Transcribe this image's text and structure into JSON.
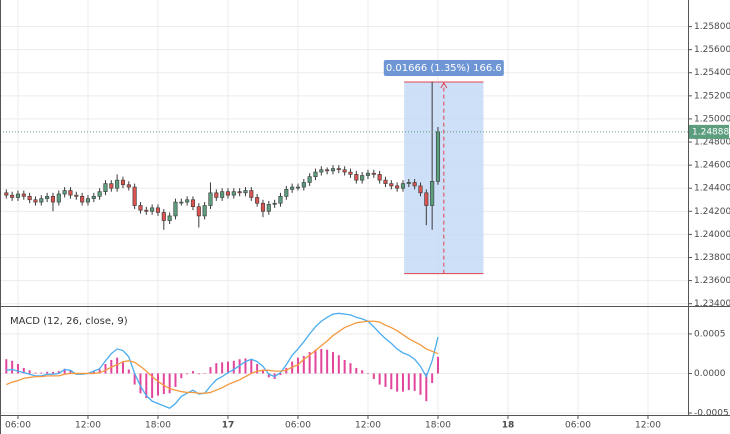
{
  "chart_data": [
    {
      "type": "candlestick",
      "x": [
        5,
        5.5,
        6,
        6.5,
        7,
        7.5,
        8,
        8.5,
        9,
        9.5,
        10,
        10.5,
        11,
        11.5,
        12,
        12.5,
        13,
        13.5,
        14,
        14.5,
        15,
        15.5,
        16,
        16.5,
        17,
        17.5,
        18,
        18.5,
        19,
        19.5,
        20,
        20.5,
        21,
        21.5,
        22,
        22.5,
        23,
        23.5,
        24,
        24.5,
        25,
        25.5,
        26,
        26.5,
        27,
        27.5,
        28,
        28.5,
        29,
        29.5,
        30,
        30.5,
        31,
        31.5,
        32,
        32.5,
        33,
        33.5,
        34,
        34.5,
        35,
        35.5,
        36,
        36.5,
        37,
        37.5,
        38,
        38.5,
        39,
        39.5,
        40,
        40.5,
        41,
        41.5,
        42
      ],
      "open": [
        1.2436,
        1.2434,
        1.2432,
        1.2435,
        1.2433,
        1.243,
        1.2428,
        1.2431,
        1.2433,
        1.2428,
        1.2435,
        1.2438,
        1.2434,
        1.2433,
        1.2428,
        1.2431,
        1.2433,
        1.2437,
        1.2444,
        1.244,
        1.2447,
        1.2443,
        1.2441,
        1.2425,
        1.2421,
        1.242,
        1.2423,
        1.2419,
        1.2412,
        1.2416,
        1.2428,
        1.2428,
        1.243,
        1.2424,
        1.2416,
        1.2425,
        1.2436,
        1.2432,
        1.2437,
        1.2434,
        1.2437,
        1.2436,
        1.2438,
        1.2432,
        1.2427,
        1.242,
        1.2426,
        1.2427,
        1.2433,
        1.2439,
        1.2441,
        1.2441,
        1.2445,
        1.245,
        1.2454,
        1.2456,
        1.2455,
        1.2457,
        1.2456,
        1.2454,
        1.2452,
        1.2447,
        1.2451,
        1.2453,
        1.2452,
        1.2447,
        1.2444,
        1.2442,
        1.244,
        1.2444,
        1.2445,
        1.2442,
        1.2436,
        1.2425,
        1.2446
      ],
      "high": [
        1.2439,
        1.2437,
        1.2438,
        1.2438,
        1.2436,
        1.2433,
        1.2434,
        1.2436,
        1.2436,
        1.2438,
        1.2441,
        1.2441,
        1.2437,
        1.2436,
        1.2434,
        1.2436,
        1.244,
        1.2447,
        1.2447,
        1.2452,
        1.245,
        1.2446,
        1.2444,
        1.2428,
        1.2424,
        1.2426,
        1.2426,
        1.2422,
        1.2419,
        1.2431,
        1.2431,
        1.2433,
        1.2433,
        1.2427,
        1.2428,
        1.2445,
        1.2439,
        1.244,
        1.244,
        1.244,
        1.244,
        1.2441,
        1.2441,
        1.2435,
        1.243,
        1.2429,
        1.243,
        1.2436,
        1.2442,
        1.2444,
        1.2444,
        1.2448,
        1.2453,
        1.2457,
        1.2459,
        1.2458,
        1.246,
        1.246,
        1.2459,
        1.2457,
        1.2455,
        1.2454,
        1.2456,
        1.2456,
        1.2455,
        1.245,
        1.2447,
        1.2445,
        1.2447,
        1.2448,
        1.2448,
        1.2445,
        1.2439,
        1.2532,
        1.2493
      ],
      "low": [
        1.2431,
        1.2429,
        1.2429,
        1.243,
        1.2427,
        1.2425,
        1.2425,
        1.2428,
        1.242,
        1.2425,
        1.2432,
        1.2431,
        1.243,
        1.2425,
        1.2425,
        1.2428,
        1.243,
        1.2434,
        1.2437,
        1.2437,
        1.244,
        1.2438,
        1.2422,
        1.2418,
        1.2417,
        1.2417,
        1.2416,
        1.2404,
        1.2409,
        1.2413,
        1.2425,
        1.2425,
        1.2421,
        1.2406,
        1.2413,
        1.2422,
        1.2429,
        1.2429,
        1.2431,
        1.2431,
        1.2433,
        1.2433,
        1.2429,
        1.2424,
        1.2415,
        1.2417,
        1.2423,
        1.2424,
        1.243,
        1.2436,
        1.2438,
        1.2438,
        1.2442,
        1.2447,
        1.2451,
        1.2452,
        1.2452,
        1.2453,
        1.2451,
        1.2449,
        1.2444,
        1.2444,
        1.2448,
        1.2449,
        1.2444,
        1.2441,
        1.2439,
        1.2437,
        1.2437,
        1.2441,
        1.2439,
        1.2433,
        1.2408,
        1.2404,
        1.2443
      ],
      "close": [
        1.2434,
        1.2432,
        1.2435,
        1.2433,
        1.243,
        1.2428,
        1.2431,
        1.2433,
        1.2428,
        1.2435,
        1.2438,
        1.2434,
        1.2433,
        1.2428,
        1.2431,
        1.2433,
        1.2437,
        1.2444,
        1.244,
        1.2447,
        1.2443,
        1.2441,
        1.2425,
        1.2421,
        1.242,
        1.2423,
        1.2419,
        1.2412,
        1.2416,
        1.2428,
        1.2428,
        1.243,
        1.2424,
        1.2416,
        1.2425,
        1.2436,
        1.2432,
        1.2437,
        1.2434,
        1.2437,
        1.2436,
        1.2438,
        1.2432,
        1.2427,
        1.242,
        1.2426,
        1.2427,
        1.2433,
        1.2439,
        1.2441,
        1.2441,
        1.2445,
        1.245,
        1.2454,
        1.2456,
        1.2455,
        1.2457,
        1.2456,
        1.2454,
        1.2452,
        1.2447,
        1.2451,
        1.2453,
        1.2452,
        1.2447,
        1.2444,
        1.2442,
        1.244,
        1.2444,
        1.2445,
        1.2442,
        1.2436,
        1.2425,
        1.2446,
        1.24888
      ],
      "up_color": "#5b9d7c",
      "down_color": "#d9534f",
      "xlim": [
        4.46,
        63.43
      ],
      "ylim": [
        1.2338,
        1.2603
      ],
      "yticks": [
        {
          "value": 1.234,
          "label": "1.23400"
        },
        {
          "value": 1.236,
          "label": "1.23600"
        },
        {
          "value": 1.238,
          "label": "1.23800"
        },
        {
          "value": 1.24,
          "label": "1.24000"
        },
        {
          "value": 1.242,
          "label": "1.24200"
        },
        {
          "value": 1.244,
          "label": "1.24400"
        },
        {
          "value": 1.246,
          "label": "1.24600"
        },
        {
          "value": 1.248,
          "label": "1.24800"
        },
        {
          "value": 1.25,
          "label": "1.25000"
        },
        {
          "value": 1.252,
          "label": "1.25200"
        },
        {
          "value": 1.254,
          "label": "1.25400"
        },
        {
          "value": 1.256,
          "label": "1.25600"
        },
        {
          "value": 1.258,
          "label": "1.25800"
        }
      ],
      "grid": true,
      "last_price": {
        "value": 1.24888,
        "label": "1.24888",
        "color": "#5b9d7c"
      },
      "measure": {
        "label": "0.01666 (1.35%) 166.6",
        "x": [
          39.1,
          45.9
        ],
        "y": [
          1.2366,
          1.2532
        ],
        "color": "#c6d9f7",
        "line_color": "#e0434f",
        "label_color": "#6f96d4"
      }
    },
    {
      "type": "macd",
      "title": "MACD (12, 26, close, 9)",
      "x": [
        5,
        5.5,
        6,
        6.5,
        7,
        7.5,
        8,
        8.5,
        9,
        9.5,
        10,
        10.5,
        11,
        11.5,
        12,
        12.5,
        13,
        13.5,
        14,
        14.5,
        15,
        15.5,
        16,
        16.5,
        17,
        17.5,
        18,
        18.5,
        19,
        19.5,
        20,
        20.5,
        21,
        21.5,
        22,
        22.5,
        23,
        23.5,
        24,
        24.5,
        25,
        25.5,
        26,
        26.5,
        27,
        27.5,
        28,
        28.5,
        29,
        29.5,
        30,
        30.5,
        31,
        31.5,
        32,
        32.5,
        33,
        33.5,
        34,
        34.5,
        35,
        35.5,
        36,
        36.5,
        37,
        37.5,
        38,
        38.5,
        39,
        39.5,
        40,
        40.5,
        41,
        41.5,
        42
      ],
      "series": [
        {
          "style": "histogram",
          "color": "#e2459c",
          "values": [
            0.00018,
            0.00016,
            0.00012,
            7e-05,
            4e-05,
            1e-05,
            1e-05,
            2e-05,
            2e-05,
            3e-05,
            6e-05,
            4e-05,
            -1e-05,
            -1e-05,
            0,
            3e-05,
            5e-05,
            0.00012,
            0.00017,
            0.0002,
            0.00014,
            5e-05,
            -0.00014,
            -0.00025,
            -0.00031,
            -0.00031,
            -0.00028,
            -0.00026,
            -0.00025,
            -0.00017,
            -6e-05,
            -1e-05,
            3e-05,
            -1e-05,
            0,
            8e-05,
            0.00013,
            0.00014,
            0.00015,
            0.00016,
            0.00018,
            0.00019,
            0.00018,
            0.00012,
            5e-05,
            -5e-05,
            -7e-05,
            -2e-05,
            7e-05,
            0.00015,
            0.0002,
            0.00022,
            0.00027,
            0.0003,
            0.00031,
            0.0003,
            0.00027,
            0.00023,
            0.00017,
            0.00013,
            7e-05,
            4e-05,
            0,
            -7e-05,
            -0.00014,
            -0.00017,
            -0.0002,
            -0.00023,
            -0.00023,
            -0.00021,
            -0.00022,
            -0.00027,
            -0.00035,
            -0.00012,
            0.00021
          ]
        },
        {
          "style": "line",
          "color": "#4aaef0",
          "values": [
            4e-05,
            5e-05,
            3e-05,
            1e-05,
            -1e-05,
            -3e-05,
            -3e-05,
            -1e-05,
            -1e-05,
            0,
            5e-05,
            4e-05,
            -1e-05,
            -1e-05,
            0,
            3e-05,
            6e-05,
            0.00016,
            0.00025,
            0.00031,
            0.00029,
            0.00021,
            0,
            -0.00016,
            -0.00028,
            -0.00035,
            -0.00038,
            -0.00041,
            -0.00044,
            -0.00038,
            -0.00029,
            -0.00025,
            -0.00021,
            -0.00026,
            -0.00025,
            -0.00016,
            -8e-05,
            -4e-05,
            1e-05,
            5e-05,
            0.0001,
            0.00015,
            0.00018,
            0.00015,
            9e-05,
            -1e-05,
            -4e-05,
            1e-05,
            0.00011,
            0.00023,
            0.00031,
            0.0004,
            0.0005,
            0.00059,
            0.00066,
            0.00071,
            0.00075,
            0.00076,
            0.00075,
            0.00074,
            0.00071,
            0.00069,
            0.00066,
            0.00059,
            0.00051,
            0.00044,
            0.00038,
            0.00031,
            0.00026,
            0.00023,
            0.00018,
            9e-05,
            -4e-05,
            0.00016,
            0.00046
          ]
        },
        {
          "style": "line",
          "color": "#f4993f",
          "values": [
            -0.00014,
            -0.00011,
            -9e-05,
            -6e-05,
            -5e-05,
            -4e-05,
            -4e-05,
            -3e-05,
            -3e-05,
            -3e-05,
            -1e-05,
            0,
            0,
            0,
            0,
            0,
            1e-05,
            4e-05,
            8e-05,
            0.00011,
            0.00015,
            0.00016,
            0.00014,
            9e-05,
            3e-05,
            -4e-05,
            -0.0001,
            -0.00015,
            -0.00019,
            -0.00021,
            -0.00023,
            -0.00024,
            -0.00024,
            -0.00025,
            -0.00025,
            -0.00024,
            -0.00021,
            -0.00018,
            -0.00014,
            -0.00011,
            -8e-05,
            -4e-05,
            0,
            3e-05,
            4e-05,
            4e-05,
            3e-05,
            3e-05,
            4e-05,
            8e-05,
            0.00011,
            0.00018,
            0.00023,
            0.00029,
            0.00035,
            0.00041,
            0.00048,
            0.00053,
            0.00058,
            0.00061,
            0.00064,
            0.00065,
            0.00066,
            0.00066,
            0.00065,
            0.00061,
            0.00058,
            0.00054,
            0.00049,
            0.00044,
            0.0004,
            0.00036,
            0.00031,
            0.00028,
            0.00025
          ]
        }
      ],
      "xlim": [
        4.46,
        63.43
      ],
      "xticks": [
        {
          "value": 6,
          "label": "06:00"
        },
        {
          "value": 12,
          "label": "12:00"
        },
        {
          "value": 18,
          "label": "18:00"
        },
        {
          "value": 24,
          "label": "17"
        },
        {
          "value": 30,
          "label": "06:00"
        },
        {
          "value": 36,
          "label": "12:00"
        },
        {
          "value": 42,
          "label": "18:00"
        },
        {
          "value": 48,
          "label": "18"
        },
        {
          "value": 54,
          "label": "06:00"
        },
        {
          "value": 60,
          "label": "12:00"
        }
      ],
      "ylim": [
        -0.000525,
        0.00084
      ],
      "yticks": [
        {
          "value": -0.0005,
          "label": "-0.0005"
        },
        {
          "value": 0,
          "label": "0.0000"
        },
        {
          "value": 0.0005,
          "label": "0.0005"
        }
      ],
      "grid": true
    }
  ]
}
